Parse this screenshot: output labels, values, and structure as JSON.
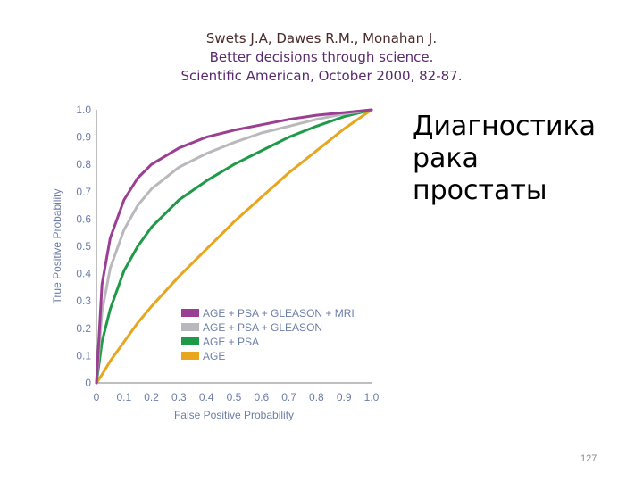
{
  "citation": {
    "authors": "Swets J.A, Dawes R.M., Monahan J.",
    "title": "Better decisions through science.",
    "journal": "Scientific American, October 2000, 82-87."
  },
  "slide_title": {
    "line1": "Диагностика",
    "line2": "рака",
    "line3": "простаты"
  },
  "page_number": "127",
  "chart_data": {
    "type": "line",
    "xlabel": "False Positive Probability",
    "ylabel": "True Positive Probability",
    "xlim": [
      0,
      1
    ],
    "ylim": [
      0,
      1
    ],
    "x_ticks": [
      "0",
      "0.1",
      "0.2",
      "0.3",
      "0.4",
      "0.5",
      "0.6",
      "0.7",
      "0.8",
      "0.9",
      "1.0"
    ],
    "y_ticks": [
      "0",
      "0.1",
      "0.2",
      "0.3",
      "0.4",
      "0.5",
      "0.6",
      "0.7",
      "0.8",
      "0.9",
      "1.0"
    ],
    "grid": false,
    "legend_position": "bottom-right",
    "x": [
      0,
      0.02,
      0.05,
      0.1,
      0.15,
      0.2,
      0.3,
      0.4,
      0.5,
      0.6,
      0.7,
      0.8,
      0.9,
      1.0
    ],
    "series": [
      {
        "name": "AGE + PSA + GLEASON + MRI",
        "color": "#9b3f93",
        "values": [
          0,
          0.36,
          0.53,
          0.67,
          0.75,
          0.8,
          0.86,
          0.9,
          0.925,
          0.945,
          0.965,
          0.98,
          0.99,
          1.0
        ]
      },
      {
        "name": "AGE + PSA + GLEASON",
        "color": "#b9b9bd",
        "values": [
          0,
          0.26,
          0.42,
          0.56,
          0.65,
          0.71,
          0.79,
          0.84,
          0.88,
          0.915,
          0.94,
          0.965,
          0.985,
          1.0
        ]
      },
      {
        "name": "AGE + PSA",
        "color": "#1f9a48",
        "values": [
          0,
          0.15,
          0.27,
          0.41,
          0.5,
          0.57,
          0.67,
          0.74,
          0.8,
          0.85,
          0.9,
          0.94,
          0.975,
          1.0
        ]
      },
      {
        "name": "AGE",
        "color": "#e8a51e",
        "values": [
          0,
          0.03,
          0.08,
          0.15,
          0.22,
          0.28,
          0.39,
          0.49,
          0.59,
          0.68,
          0.77,
          0.85,
          0.93,
          1.0
        ]
      }
    ]
  }
}
